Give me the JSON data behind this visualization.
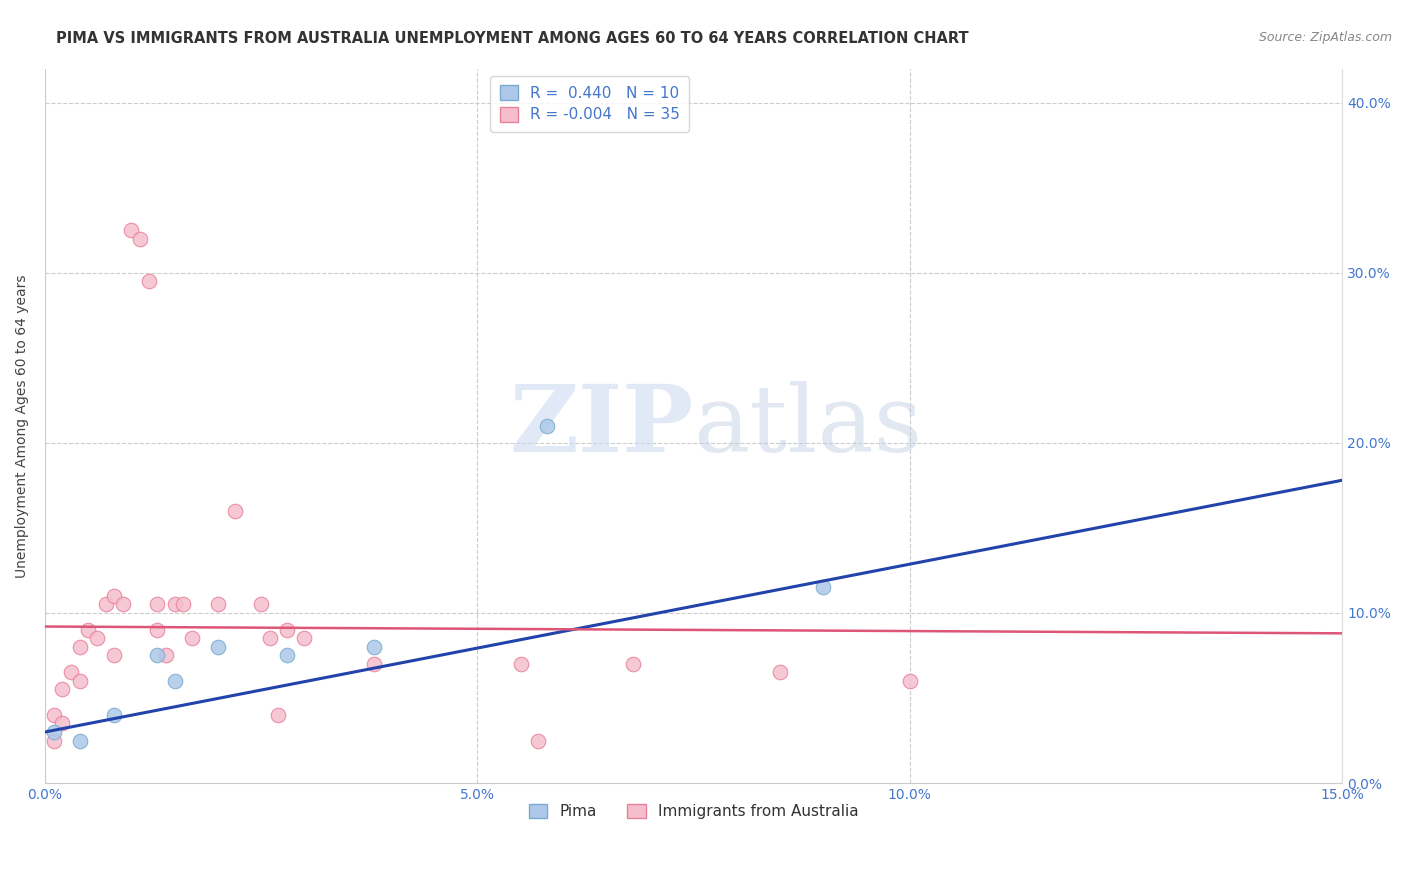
{
  "title": "PIMA VS IMMIGRANTS FROM AUSTRALIA UNEMPLOYMENT AMONG AGES 60 TO 64 YEARS CORRELATION CHART",
  "source": "Source: ZipAtlas.com",
  "ylabel": "Unemployment Among Ages 60 to 64 years",
  "xlim": [
    0.0,
    0.15
  ],
  "ylim": [
    0.0,
    0.42
  ],
  "xticks": [
    0.0,
    0.05,
    0.1,
    0.15
  ],
  "xtick_labels": [
    "0.0%",
    "5.0%",
    "10.0%",
    "15.0%"
  ],
  "yticks": [
    0.0,
    0.1,
    0.2,
    0.3,
    0.4
  ],
  "ytick_labels": [
    "0.0%",
    "10.0%",
    "20.0%",
    "30.0%",
    "40.0%"
  ],
  "grid_color": "#cccccc",
  "background_color": "#ffffff",
  "watermark_zip": "ZIP",
  "watermark_atlas": "atlas",
  "pima_color": "#adc8e8",
  "pima_edge_color": "#7aaad0",
  "australia_color": "#f5bece",
  "australia_edge_color": "#e8809a",
  "pima_line_color": "#2244aa",
  "australia_line_color": "#dd5577",
  "pima_R": 0.44,
  "pima_N": 10,
  "australia_R": -0.004,
  "australia_N": 35,
  "pima_scatter_x": [
    0.001,
    0.004,
    0.008,
    0.013,
    0.015,
    0.02,
    0.028,
    0.038,
    0.058,
    0.09
  ],
  "pima_scatter_y": [
    0.03,
    0.025,
    0.04,
    0.075,
    0.06,
    0.08,
    0.075,
    0.08,
    0.21,
    0.115
  ],
  "australia_scatter_x": [
    0.001,
    0.001,
    0.002,
    0.002,
    0.003,
    0.004,
    0.004,
    0.005,
    0.006,
    0.007,
    0.008,
    0.008,
    0.009,
    0.01,
    0.011,
    0.012,
    0.013,
    0.013,
    0.014,
    0.015,
    0.016,
    0.017,
    0.02,
    0.022,
    0.025,
    0.026,
    0.027,
    0.028,
    0.03,
    0.038,
    0.055,
    0.057,
    0.068,
    0.085,
    0.1
  ],
  "australia_scatter_y": [
    0.04,
    0.025,
    0.055,
    0.035,
    0.065,
    0.08,
    0.06,
    0.09,
    0.085,
    0.105,
    0.11,
    0.075,
    0.105,
    0.325,
    0.32,
    0.295,
    0.105,
    0.09,
    0.075,
    0.105,
    0.105,
    0.085,
    0.105,
    0.16,
    0.105,
    0.085,
    0.04,
    0.09,
    0.085,
    0.07,
    0.07,
    0.025,
    0.07,
    0.065,
    0.06
  ],
  "pima_trend_x": [
    0.0,
    0.15
  ],
  "pima_trend_y": [
    0.03,
    0.178
  ],
  "australia_trend_x": [
    0.0,
    0.15
  ],
  "australia_trend_y": [
    0.092,
    0.088
  ],
  "marker_size": 110,
  "legend_pima_label": "Pima",
  "legend_australia_label": "Immigrants from Australia",
  "title_fontsize": 10.5,
  "axis_label_fontsize": 10,
  "tick_fontsize": 10,
  "legend_fontsize": 11,
  "source_fontsize": 9,
  "tick_color": "#4477cc",
  "title_color": "#333333",
  "ylabel_color": "#444444"
}
